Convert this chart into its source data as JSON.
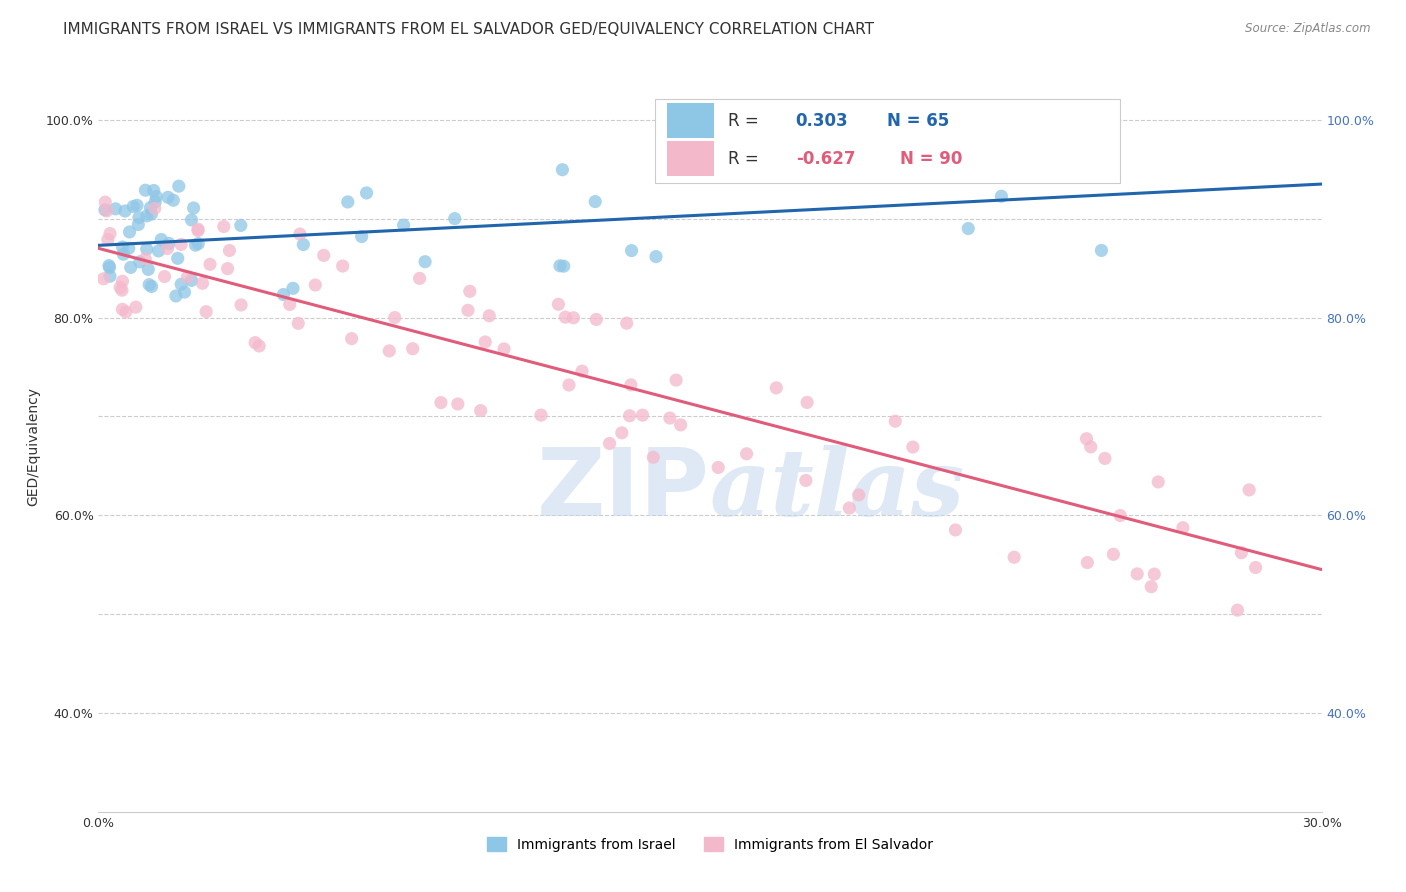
{
  "title": "IMMIGRANTS FROM ISRAEL VS IMMIGRANTS FROM EL SALVADOR GED/EQUIVALENCY CORRELATION CHART",
  "source_text": "Source: ZipAtlas.com",
  "ylabel": "GED/Equivalency",
  "xlim": [
    0.0,
    0.3
  ],
  "ylim": [
    0.3,
    1.04
  ],
  "R_israel": 0.303,
  "N_israel": 65,
  "R_salvador": -0.627,
  "N_salvador": 90,
  "israel_color": "#8ec6e6",
  "salvador_color": "#f4b8cb",
  "israel_line_color": "#2166ac",
  "salvador_line_color": "#e05c7a",
  "legend_label_israel": "Immigrants from Israel",
  "legend_label_salvador": "Immigrants from El Salvador",
  "israel_line_x0": 0.0,
  "israel_line_y0": 0.873,
  "israel_line_x1": 0.3,
  "israel_line_y1": 0.935,
  "salvador_line_x0": 0.0,
  "salvador_line_y0": 0.87,
  "salvador_line_x1": 0.3,
  "salvador_line_y1": 0.545,
  "watermark_text": "ZIPatlas",
  "title_fontsize": 11,
  "axis_label_fontsize": 10,
  "tick_fontsize": 9,
  "legend_fontsize": 12
}
